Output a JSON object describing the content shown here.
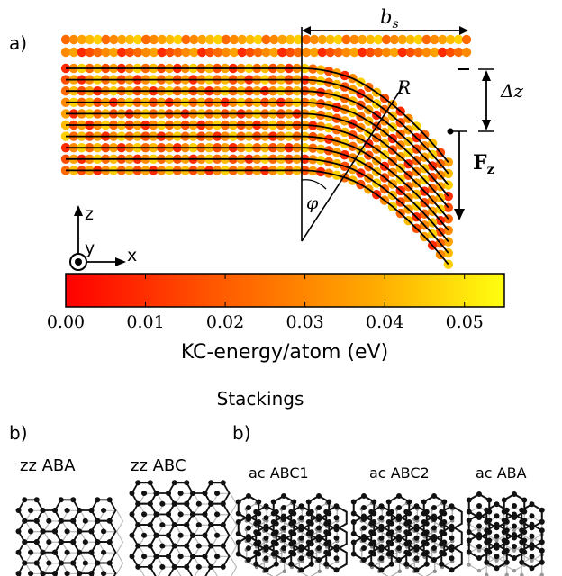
{
  "panel_a": {
    "panel_label": "a)",
    "bs_label": "b",
    "bs_sub": "s",
    "dz_label": "Δz",
    "fz_label": "F",
    "fz_sub": "z",
    "r_label": "R",
    "phi_label": "φ",
    "axis_z": "z",
    "axis_y": "y",
    "axis_x": "x",
    "flat_layers": 2,
    "bent_layers": 10
  },
  "colorbar": {
    "label": "KC-energy/atom (eV)",
    "ticks": [
      "0.00",
      "0.01",
      "0.02",
      "0.03",
      "0.04",
      "0.05"
    ],
    "min": 0.0,
    "max": 0.055,
    "colors": [
      "#ff0000",
      "#ff6a00",
      "#ffb000",
      "#ffff00"
    ]
  },
  "stackings": {
    "title": "Stackings",
    "left_label": "b)",
    "right_label": "b)",
    "items": [
      "zz ABA",
      "zz ABC",
      "ac ABC1",
      "ac ABC2",
      "ac ABA"
    ]
  }
}
